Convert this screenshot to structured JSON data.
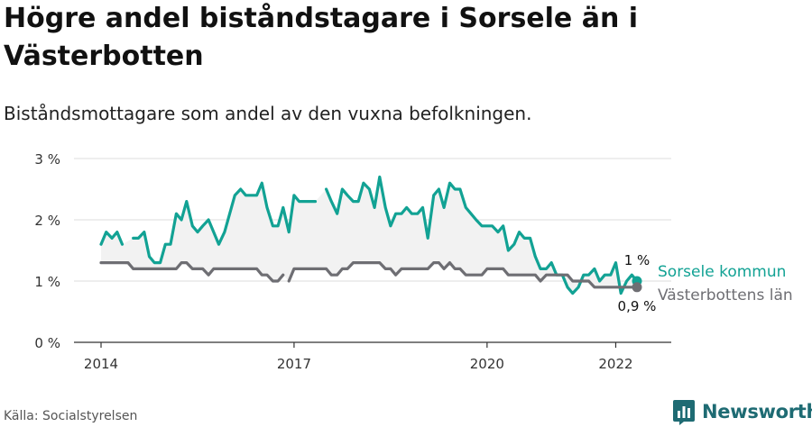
{
  "title": "Högre andel biståndstagare i Sorsele än i Västerbotten",
  "subtitle": "Biståndsmottagare som andel av den vuxna befolkningen.",
  "source": "Källa: Socialstyrelsen",
  "brand": {
    "name": "Newsworthy",
    "color": "#1e6b73"
  },
  "chart_data": {
    "type": "line",
    "xlim": [
      2014.0,
      2022.6
    ],
    "ylim": [
      0,
      3
    ],
    "x_ticks": [
      {
        "value": 2014,
        "label": "2014"
      },
      {
        "value": 2017,
        "label": "2017"
      },
      {
        "value": 2020,
        "label": "2020"
      },
      {
        "value": 2022,
        "label": "2022"
      }
    ],
    "y_ticks": [
      {
        "value": 0,
        "label": "0 %"
      },
      {
        "value": 1,
        "label": "1 %"
      },
      {
        "value": 2,
        "label": "2 %"
      },
      {
        "value": 3,
        "label": "3 %"
      }
    ],
    "grid": true,
    "series": [
      {
        "name": "Sorsele kommun",
        "color": "#12a294",
        "end_label": "1 %",
        "values": [
          [
            2014.0,
            1.6
          ],
          [
            2014.08,
            1.8
          ],
          [
            2014.17,
            1.7
          ],
          [
            2014.25,
            1.8
          ],
          [
            2014.33,
            1.6
          ],
          null,
          [
            2014.5,
            1.7
          ],
          [
            2014.58,
            1.7
          ],
          [
            2014.67,
            1.8
          ],
          [
            2014.75,
            1.4
          ],
          [
            2014.83,
            1.3
          ],
          [
            2014.92,
            1.3
          ],
          [
            2015.0,
            1.6
          ],
          [
            2015.08,
            1.6
          ],
          [
            2015.17,
            2.1
          ],
          [
            2015.25,
            2.0
          ],
          [
            2015.33,
            2.3
          ],
          [
            2015.42,
            1.9
          ],
          [
            2015.5,
            1.8
          ],
          [
            2015.58,
            1.9
          ],
          [
            2015.67,
            2.0
          ],
          [
            2015.75,
            1.8
          ],
          [
            2015.83,
            1.6
          ],
          [
            2015.92,
            1.8
          ],
          [
            2016.0,
            2.1
          ],
          [
            2016.08,
            2.4
          ],
          [
            2016.17,
            2.5
          ],
          [
            2016.25,
            2.4
          ],
          [
            2016.33,
            2.4
          ],
          [
            2016.42,
            2.4
          ],
          [
            2016.5,
            2.6
          ],
          [
            2016.58,
            2.2
          ],
          [
            2016.67,
            1.9
          ],
          [
            2016.75,
            1.9
          ],
          [
            2016.83,
            2.2
          ],
          [
            2016.92,
            1.8
          ],
          [
            2017.0,
            2.4
          ],
          [
            2017.08,
            2.3
          ],
          [
            2017.17,
            2.3
          ],
          [
            2017.25,
            2.3
          ],
          [
            2017.33,
            2.3
          ],
          null,
          [
            2017.5,
            2.5
          ],
          [
            2017.58,
            2.3
          ],
          [
            2017.67,
            2.1
          ],
          [
            2017.75,
            2.5
          ],
          [
            2017.83,
            2.4
          ],
          [
            2017.92,
            2.3
          ],
          [
            2018.0,
            2.3
          ],
          [
            2018.08,
            2.6
          ],
          [
            2018.17,
            2.5
          ],
          [
            2018.25,
            2.2
          ],
          [
            2018.33,
            2.7
          ],
          [
            2018.42,
            2.2
          ],
          [
            2018.5,
            1.9
          ],
          [
            2018.58,
            2.1
          ],
          [
            2018.67,
            2.1
          ],
          [
            2018.75,
            2.2
          ],
          [
            2018.83,
            2.1
          ],
          [
            2018.92,
            2.1
          ],
          [
            2019.0,
            2.2
          ],
          [
            2019.08,
            1.7
          ],
          [
            2019.17,
            2.4
          ],
          [
            2019.25,
            2.5
          ],
          [
            2019.33,
            2.2
          ],
          [
            2019.42,
            2.6
          ],
          [
            2019.5,
            2.5
          ],
          [
            2019.58,
            2.5
          ],
          [
            2019.67,
            2.2
          ],
          [
            2019.75,
            2.1
          ],
          [
            2019.83,
            2.0
          ],
          [
            2019.92,
            1.9
          ],
          [
            2020.0,
            1.9
          ],
          [
            2020.08,
            1.9
          ],
          [
            2020.17,
            1.8
          ],
          [
            2020.25,
            1.9
          ],
          [
            2020.33,
            1.5
          ],
          [
            2020.42,
            1.6
          ],
          [
            2020.5,
            1.8
          ],
          [
            2020.58,
            1.7
          ],
          [
            2020.67,
            1.7
          ],
          [
            2020.75,
            1.4
          ],
          [
            2020.83,
            1.2
          ],
          [
            2020.92,
            1.2
          ],
          [
            2021.0,
            1.3
          ],
          [
            2021.08,
            1.1
          ],
          [
            2021.17,
            1.1
          ],
          [
            2021.25,
            0.9
          ],
          [
            2021.33,
            0.8
          ],
          [
            2021.42,
            0.9
          ],
          [
            2021.5,
            1.1
          ],
          [
            2021.58,
            1.1
          ],
          [
            2021.67,
            1.2
          ],
          [
            2021.75,
            1.0
          ],
          [
            2021.83,
            1.1
          ],
          [
            2021.92,
            1.1
          ],
          [
            2022.0,
            1.3
          ],
          [
            2022.08,
            0.8
          ],
          [
            2022.17,
            1.0
          ],
          [
            2022.25,
            1.1
          ],
          [
            2022.33,
            1.0
          ]
        ]
      },
      {
        "name": "Västerbottens län",
        "color": "#6e6e73",
        "end_label": "0,9 %",
        "values": [
          [
            2014.0,
            1.3
          ],
          [
            2014.08,
            1.3
          ],
          [
            2014.17,
            1.3
          ],
          [
            2014.25,
            1.3
          ],
          [
            2014.33,
            1.3
          ],
          [
            2014.42,
            1.3
          ],
          [
            2014.5,
            1.2
          ],
          [
            2014.58,
            1.2
          ],
          [
            2014.67,
            1.2
          ],
          [
            2014.75,
            1.2
          ],
          [
            2014.83,
            1.2
          ],
          [
            2014.92,
            1.2
          ],
          [
            2015.0,
            1.2
          ],
          [
            2015.08,
            1.2
          ],
          [
            2015.17,
            1.2
          ],
          [
            2015.25,
            1.3
          ],
          [
            2015.33,
            1.3
          ],
          [
            2015.42,
            1.2
          ],
          [
            2015.5,
            1.2
          ],
          [
            2015.58,
            1.2
          ],
          [
            2015.67,
            1.1
          ],
          [
            2015.75,
            1.2
          ],
          [
            2015.83,
            1.2
          ],
          [
            2015.92,
            1.2
          ],
          [
            2016.0,
            1.2
          ],
          [
            2016.08,
            1.2
          ],
          [
            2016.17,
            1.2
          ],
          [
            2016.25,
            1.2
          ],
          [
            2016.33,
            1.2
          ],
          [
            2016.42,
            1.2
          ],
          [
            2016.5,
            1.1
          ],
          [
            2016.58,
            1.1
          ],
          [
            2016.67,
            1.0
          ],
          [
            2016.75,
            1.0
          ],
          [
            2016.83,
            1.1
          ],
          null,
          [
            2016.92,
            1.0
          ],
          [
            2017.0,
            1.2
          ],
          [
            2017.08,
            1.2
          ],
          [
            2017.17,
            1.2
          ],
          [
            2017.25,
            1.2
          ],
          [
            2017.33,
            1.2
          ],
          [
            2017.42,
            1.2
          ],
          [
            2017.5,
            1.2
          ],
          [
            2017.58,
            1.1
          ],
          [
            2017.67,
            1.1
          ],
          [
            2017.75,
            1.2
          ],
          [
            2017.83,
            1.2
          ],
          [
            2017.92,
            1.3
          ],
          [
            2018.0,
            1.3
          ],
          [
            2018.08,
            1.3
          ],
          [
            2018.17,
            1.3
          ],
          [
            2018.25,
            1.3
          ],
          [
            2018.33,
            1.3
          ],
          [
            2018.42,
            1.2
          ],
          [
            2018.5,
            1.2
          ],
          [
            2018.58,
            1.1
          ],
          [
            2018.67,
            1.2
          ],
          [
            2018.75,
            1.2
          ],
          [
            2018.83,
            1.2
          ],
          [
            2018.92,
            1.2
          ],
          [
            2019.0,
            1.2
          ],
          [
            2019.08,
            1.2
          ],
          [
            2019.17,
            1.3
          ],
          [
            2019.25,
            1.3
          ],
          [
            2019.33,
            1.2
          ],
          [
            2019.42,
            1.3
          ],
          [
            2019.5,
            1.2
          ],
          [
            2019.58,
            1.2
          ],
          [
            2019.67,
            1.1
          ],
          [
            2019.75,
            1.1
          ],
          [
            2019.83,
            1.1
          ],
          [
            2019.92,
            1.1
          ],
          [
            2020.0,
            1.2
          ],
          [
            2020.08,
            1.2
          ],
          [
            2020.17,
            1.2
          ],
          [
            2020.25,
            1.2
          ],
          [
            2020.33,
            1.1
          ],
          [
            2020.42,
            1.1
          ],
          [
            2020.5,
            1.1
          ],
          [
            2020.58,
            1.1
          ],
          [
            2020.67,
            1.1
          ],
          [
            2020.75,
            1.1
          ],
          [
            2020.83,
            1.0
          ],
          [
            2020.92,
            1.1
          ],
          [
            2021.0,
            1.1
          ],
          [
            2021.08,
            1.1
          ],
          [
            2021.17,
            1.1
          ],
          [
            2021.25,
            1.1
          ],
          [
            2021.33,
            1.0
          ],
          [
            2021.42,
            1.0
          ],
          [
            2021.5,
            1.0
          ],
          [
            2021.58,
            1.0
          ],
          [
            2021.67,
            0.9
          ],
          [
            2021.75,
            0.9
          ],
          [
            2021.83,
            0.9
          ],
          [
            2021.92,
            0.9
          ],
          [
            2022.0,
            0.9
          ],
          [
            2022.08,
            0.9
          ],
          [
            2022.17,
            0.9
          ],
          [
            2022.25,
            0.9
          ],
          [
            2022.33,
            0.9
          ]
        ]
      }
    ]
  }
}
